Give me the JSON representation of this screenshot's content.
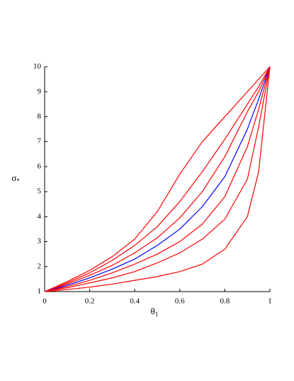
{
  "chart_data": {
    "type": "line",
    "xlabel": {
      "text": "θ",
      "sub": "1"
    },
    "ylabel": {
      "text": "σ",
      "sub": "*"
    },
    "x": [
      0,
      0.1,
      0.2,
      0.3,
      0.4,
      0.5,
      0.6,
      0.7,
      0.8,
      0.9,
      0.95,
      1
    ],
    "series": [
      {
        "color": "#ff0000",
        "values": [
          1,
          1.4,
          1.85,
          2.4,
          3.1,
          4.2,
          5.7,
          7.0,
          8.0,
          9.0,
          9.5,
          10
        ]
      },
      {
        "color": "#ff0000",
        "values": [
          1,
          1.35,
          1.75,
          2.25,
          2.85,
          3.6,
          4.6,
          5.8,
          7.1,
          8.5,
          9.2,
          10
        ]
      },
      {
        "color": "#ff0000",
        "values": [
          1,
          1.3,
          1.65,
          2.05,
          2.55,
          3.15,
          3.95,
          5.0,
          6.4,
          8.2,
          9.0,
          10
        ]
      },
      {
        "color": "#0000ff",
        "values": [
          1,
          1.25,
          1.55,
          1.9,
          2.3,
          2.85,
          3.5,
          4.4,
          5.6,
          7.5,
          8.7,
          10
        ]
      },
      {
        "color": "#ff0000",
        "values": [
          1,
          1.2,
          1.45,
          1.75,
          2.1,
          2.5,
          3.0,
          3.7,
          4.8,
          6.8,
          8.3,
          10
        ]
      },
      {
        "color": "#ff0000",
        "values": [
          1,
          1.15,
          1.35,
          1.55,
          1.8,
          2.15,
          2.55,
          3.1,
          3.9,
          5.5,
          7.6,
          10
        ]
      },
      {
        "color": "#ff0000",
        "values": [
          1,
          1.08,
          1.18,
          1.3,
          1.45,
          1.6,
          1.8,
          2.1,
          2.7,
          4.0,
          5.8,
          10
        ]
      }
    ],
    "xlim": [
      0,
      1
    ],
    "ylim": [
      1,
      10
    ],
    "xticks": [
      0,
      0.2,
      0.4,
      0.6,
      0.8,
      1
    ],
    "yticks": [
      1,
      2,
      3,
      4,
      5,
      6,
      7,
      8,
      9,
      10
    ],
    "grid": false
  }
}
